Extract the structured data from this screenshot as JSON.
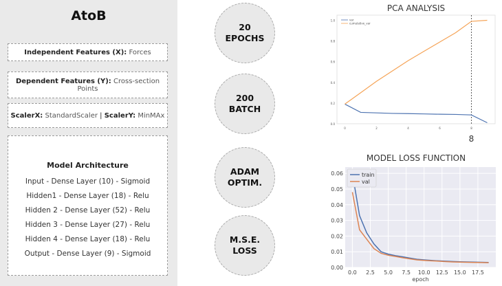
{
  "app": {
    "title": "AtoB"
  },
  "cards": {
    "independent": {
      "label": "Independent Features (X):",
      "value": "Forces"
    },
    "dependent": {
      "label": "Dependent Features (Y):",
      "value": "Cross-section Points"
    },
    "scaler": {
      "x_label": "ScalerX:",
      "x_value": "StandardScaler",
      "sep": "|",
      "y_label": "ScalerY:",
      "y_value": "MinMAx"
    }
  },
  "architecture": {
    "title": "Model Architecture",
    "layers": [
      "Input - Dense Layer (10) - Sigmoid",
      "Hidden1 - Dense Layer (18) - Relu",
      "Hidden 2 - Dense Layer (52) - Relu",
      "Hidden 3 - Dense Layer (27) - Relu",
      "Hidden 4 - Dense Layer (18) - Relu",
      "Output - Dense Layer (9) - Sigmoid"
    ]
  },
  "circles": [
    {
      "line1": "20",
      "line2": "EPOCHS"
    },
    {
      "line1": "200",
      "line2": "BATCH"
    },
    {
      "line1": "ADAM",
      "line2": "OPTIM."
    },
    {
      "line1": "M.S.E.",
      "line2": "LOSS"
    }
  ],
  "chart_data": [
    {
      "type": "line",
      "title": "PCA ANALYSIS",
      "annotation": "8",
      "x": [
        0,
        1,
        2,
        3,
        4,
        5,
        6,
        7,
        8,
        9
      ],
      "xticks": [
        0,
        2,
        4,
        6,
        8
      ],
      "yticks": [
        0.0,
        0.2,
        0.4,
        0.6,
        0.8,
        1.0
      ],
      "ylim": [
        0,
        1.05
      ],
      "xlim": [
        -0.5,
        9.5
      ],
      "vline_x": 8,
      "legend_position": "top-left",
      "series": [
        {
          "name": "var",
          "color": "#4c72b0",
          "values": [
            0.19,
            0.11,
            0.105,
            0.1,
            0.098,
            0.095,
            0.092,
            0.09,
            0.085,
            0.01
          ]
        },
        {
          "name": "cumulative_var",
          "color": "#f5a356",
          "values": [
            0.19,
            0.3,
            0.41,
            0.51,
            0.61,
            0.7,
            0.79,
            0.88,
            0.99,
            1.0
          ]
        }
      ]
    },
    {
      "type": "line",
      "title": "MODEL LOSS FUNCTION",
      "xlabel": "epoch",
      "x": [
        0,
        1,
        2,
        3,
        4,
        5,
        6,
        7,
        8,
        9,
        10,
        11,
        12,
        13,
        14,
        15,
        16,
        17,
        18,
        19
      ],
      "xticks": [
        "0.0",
        "2.5",
        "5.0",
        "7.5",
        "10.0",
        "12.5",
        "15.0",
        "17.5"
      ],
      "yticks": [
        "0.00",
        "0.01",
        "0.02",
        "0.03",
        "0.04",
        "0.05",
        "0.06"
      ],
      "ylim": [
        0,
        0.064
      ],
      "xlim": [
        -1,
        20
      ],
      "grid": true,
      "legend_position": "top-left",
      "series": [
        {
          "name": "train",
          "color": "#4c72b0",
          "values": [
            0.06,
            0.033,
            0.022,
            0.015,
            0.01,
            0.0085,
            0.0075,
            0.0068,
            0.006,
            0.0052,
            0.0048,
            0.0045,
            0.0042,
            0.004,
            0.0038,
            0.0036,
            0.0035,
            0.0034,
            0.0033,
            0.0032
          ]
        },
        {
          "name": "val",
          "color": "#dd8452",
          "values": [
            0.048,
            0.024,
            0.018,
            0.012,
            0.009,
            0.0078,
            0.007,
            0.0062,
            0.0055,
            0.0048,
            0.0045,
            0.0042,
            0.004,
            0.0037,
            0.0035,
            0.0034,
            0.0033,
            0.0032,
            0.0031,
            0.003
          ]
        }
      ]
    }
  ]
}
